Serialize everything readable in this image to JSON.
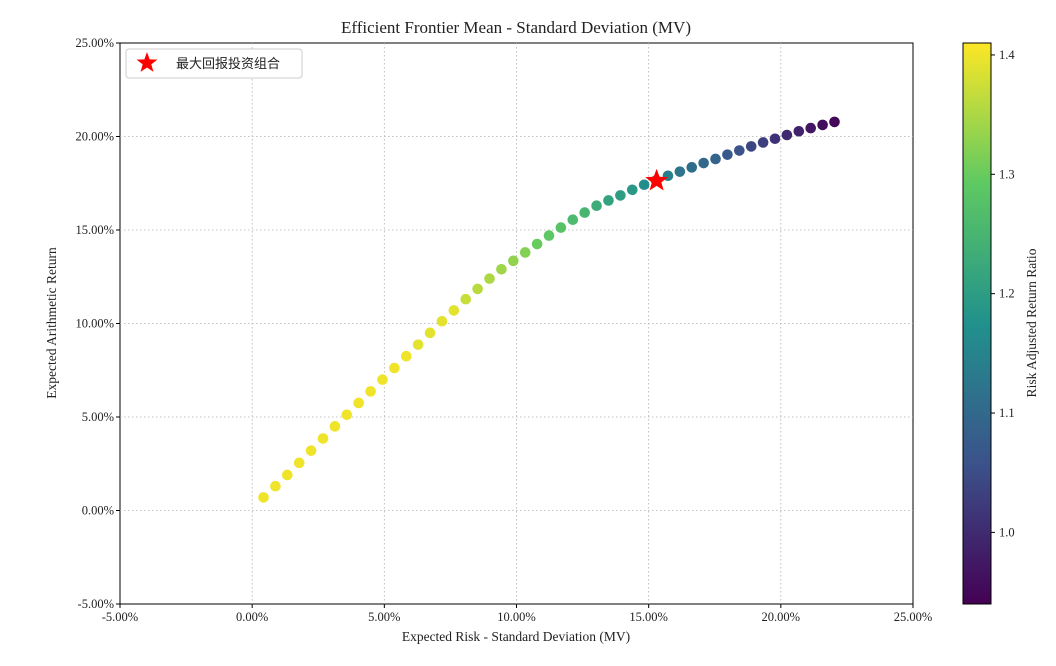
{
  "chart_data": {
    "type": "scatter",
    "title": "Efficient Frontier Mean - Standard Deviation (MV)",
    "xlabel": "Expected Risk - Standard Deviation (MV)",
    "ylabel": "Expected Arithmetic Return",
    "xlim": [
      -0.05,
      0.25
    ],
    "ylim": [
      -0.05,
      0.25
    ],
    "x_ticks": [
      -0.05,
      0.0,
      0.05,
      0.1,
      0.15,
      0.2,
      0.25
    ],
    "x_tick_labels": [
      "-5.00%",
      "0.00%",
      "5.00%",
      "10.00%",
      "15.00%",
      "20.00%",
      "25.00%"
    ],
    "y_ticks": [
      -0.05,
      0.0,
      0.05,
      0.1,
      0.15,
      0.2,
      0.25
    ],
    "y_tick_labels": [
      "-5.00%",
      "0.00%",
      "5.00%",
      "10.00%",
      "15.00%",
      "20.00%",
      "25.00%"
    ],
    "grid": true,
    "colormap": "viridis",
    "colorbar": {
      "label": "Risk Adjusted Return Ratio",
      "range": [
        0.94,
        1.41
      ],
      "ticks": [
        1.0,
        1.1,
        1.2,
        1.3,
        1.4
      ],
      "tick_labels": [
        "1.0",
        "1.1",
        "1.2",
        "1.3",
        "1.4"
      ]
    },
    "series": [
      {
        "x": [
          0.0043,
          0.0088,
          0.0133,
          0.0178,
          0.0223,
          0.0268,
          0.0313,
          0.0358,
          0.0403,
          0.0448,
          0.0493,
          0.0538,
          0.0583,
          0.0628,
          0.0673,
          0.0718,
          0.0763,
          0.0808,
          0.0853,
          0.0898,
          0.0943,
          0.0988,
          0.1033,
          0.1078,
          0.1123,
          0.1168,
          0.1213,
          0.1258,
          0.1303,
          0.1348,
          0.1393,
          0.1438,
          0.1483,
          0.1528,
          0.1573,
          0.1618,
          0.1663,
          0.1708,
          0.1753,
          0.1798,
          0.1843,
          0.1888,
          0.1933,
          0.1978,
          0.2023,
          0.2068,
          0.2113,
          0.2158,
          0.2203
        ],
        "y": [
          0.007,
          0.013,
          0.019,
          0.0255,
          0.032,
          0.0385,
          0.045,
          0.0512,
          0.0575,
          0.0637,
          0.07,
          0.0762,
          0.0825,
          0.0887,
          0.095,
          0.1012,
          0.107,
          0.113,
          0.1185,
          0.124,
          0.129,
          0.1335,
          0.138,
          0.1425,
          0.147,
          0.1513,
          0.1555,
          0.1593,
          0.163,
          0.1658,
          0.1685,
          0.1715,
          0.1742,
          0.1765,
          0.179,
          0.1812,
          0.1835,
          0.1858,
          0.188,
          0.1903,
          0.1925,
          0.1947,
          0.1968,
          0.1988,
          0.2008,
          0.2028,
          0.2045,
          0.2062,
          0.2078
        ],
        "c": [
          1.4,
          1.4,
          1.4,
          1.4,
          1.4,
          1.4,
          1.4,
          1.4,
          1.4,
          1.4,
          1.4,
          1.4,
          1.4,
          1.39,
          1.39,
          1.39,
          1.39,
          1.37,
          1.36,
          1.35,
          1.34,
          1.33,
          1.32,
          1.3,
          1.29,
          1.28,
          1.26,
          1.25,
          1.23,
          1.21,
          1.2,
          1.19,
          1.17,
          1.16,
          1.14,
          1.12,
          1.11,
          1.1,
          1.09,
          1.07,
          1.06,
          1.04,
          1.03,
          1.01,
          1.0,
          0.99,
          0.97,
          0.96,
          0.95
        ]
      }
    ],
    "highlight": {
      "name": "最大回报投资组合",
      "x": 0.153,
      "y": 0.1763,
      "marker": "star",
      "color": "#ff0000"
    },
    "legend": {
      "placement": "top-left",
      "entries": [
        "最大回报投资组合"
      ]
    }
  }
}
